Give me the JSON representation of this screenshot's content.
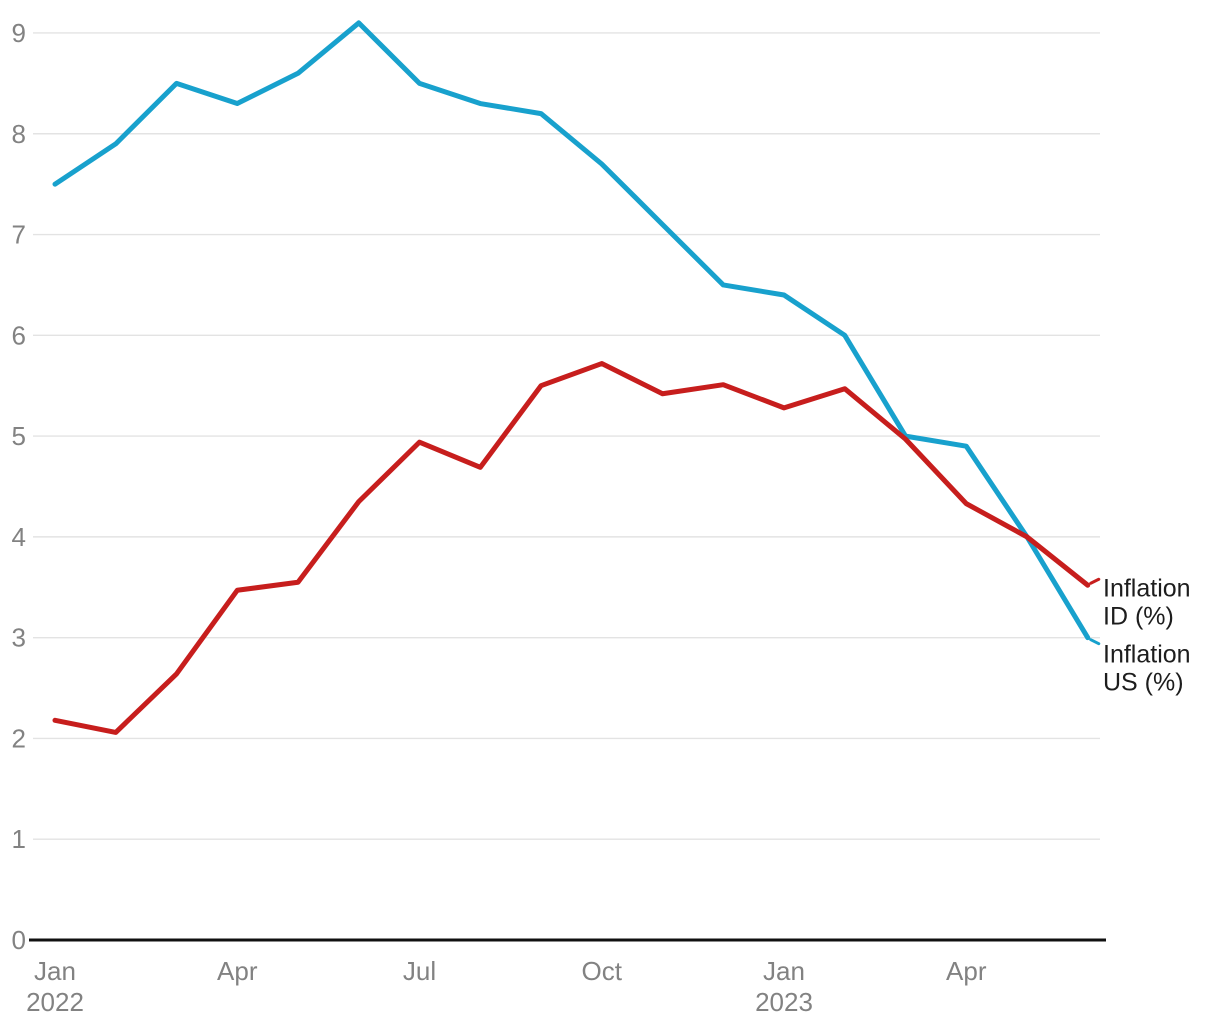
{
  "chart_data": {
    "type": "line",
    "categories": [
      "Jan 2022",
      "Feb 2022",
      "Mar 2022",
      "Apr 2022",
      "May 2022",
      "Jun 2022",
      "Jul 2022",
      "Aug 2022",
      "Sep 2022",
      "Oct 2022",
      "Nov 2022",
      "Dec 2022",
      "Jan 2023",
      "Feb 2023",
      "Mar 2023",
      "Apr 2023",
      "May 2023",
      "Jun 2023"
    ],
    "series": [
      {
        "name": "Inflation US (%)",
        "label_lines": [
          "Inflation",
          "US (%)"
        ],
        "color": "#18a1cd",
        "values": [
          7.5,
          7.9,
          8.5,
          8.3,
          8.6,
          9.1,
          8.5,
          8.3,
          8.2,
          7.7,
          7.1,
          6.5,
          6.4,
          6.0,
          5.0,
          4.9,
          4.0,
          3.0
        ]
      },
      {
        "name": "Inflation ID (%)",
        "label_lines": [
          "Inflation",
          "ID (%)"
        ],
        "color": "#c71e1d",
        "values": [
          2.18,
          2.06,
          2.64,
          3.47,
          3.55,
          4.35,
          4.94,
          4.69,
          5.5,
          5.72,
          5.42,
          5.51,
          5.28,
          5.47,
          4.97,
          4.33,
          4.0,
          3.52
        ]
      }
    ],
    "ylim": [
      0,
      9
    ],
    "y_ticks": [
      0,
      1,
      2,
      3,
      4,
      5,
      6,
      7,
      8,
      9
    ],
    "x_ticks": [
      {
        "index": 0,
        "label": "Jan",
        "sublabel": "2022"
      },
      {
        "index": 3,
        "label": "Apr"
      },
      {
        "index": 6,
        "label": "Jul"
      },
      {
        "index": 9,
        "label": "Oct"
      },
      {
        "index": 12,
        "label": "Jan",
        "sublabel": "2023"
      },
      {
        "index": 15,
        "label": "Apr"
      }
    ],
    "grid": true,
    "legend_position": "right-end-labels",
    "colors": {
      "grid": "#e3e3e3",
      "axis": "#111111",
      "tick_text": "#828282",
      "label_text": "#1d1d1d",
      "background": "#ffffff"
    }
  }
}
